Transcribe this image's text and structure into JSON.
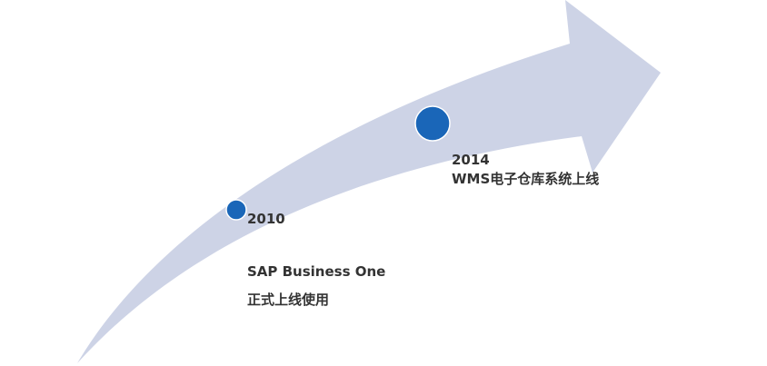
{
  "colors": {
    "arrow": "#cdd3e6",
    "dot": "#1a66b8",
    "text": "#333333"
  },
  "milestones": [
    {
      "year": "2010",
      "line1": "SAP Business One",
      "line2": "正式上线使用"
    },
    {
      "year": "2014",
      "line1": "WMS电子仓库系统上线"
    }
  ]
}
